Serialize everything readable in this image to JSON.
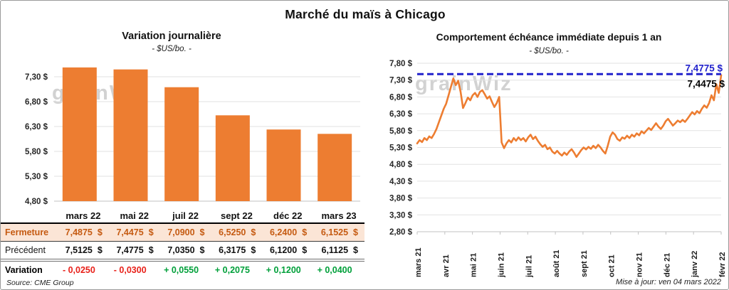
{
  "page": {
    "title": "Marché du maïs à Chicago",
    "source_note": "Source: CME Group",
    "update_note": "Mise à jour: ven 04 mars 2022",
    "watermark": "grainWiz"
  },
  "colors": {
    "orange": "#ED7D31",
    "peach_row_bg": "#FBE5D6",
    "rust_text": "#C55A11",
    "reference_blue": "#2222CC",
    "negative_red": "#e8211a",
    "positive_green": "#00a03a",
    "grid": "#E2E2E2",
    "axis": "#C2C2C2"
  },
  "table": {
    "columns": [
      "mars 22",
      "mai 22",
      "juil 22",
      "sept 22",
      "déc 22",
      "mars 23"
    ],
    "rows": [
      {
        "label": "Fermeture",
        "unit": "$",
        "values": [
          "7,4875",
          "7,4475",
          "7,0900",
          "6,5250",
          "6,2400",
          "6,1525"
        ]
      },
      {
        "label": "Précédent",
        "unit": "$",
        "values": [
          "7,5125",
          "7,4775",
          "7,0350",
          "6,3175",
          "6,1200",
          "6,1125"
        ]
      },
      {
        "label": "Variation",
        "values": [
          "- 0,0250",
          "- 0,0300",
          "+ 0,0550",
          "+ 0,2075",
          "+ 0,1200",
          "+ 0,0400"
        ],
        "signs": [
          "neg",
          "neg",
          "pos",
          "pos",
          "pos",
          "pos"
        ]
      }
    ]
  },
  "chart_data": [
    {
      "type": "bar",
      "title": "Variation journalière",
      "subtitle": "- $US/bo. -",
      "categories": [
        "mars 22",
        "mai 22",
        "juil 22",
        "sept 22",
        "déc 22",
        "mars 23"
      ],
      "values": [
        7.4875,
        7.4475,
        7.09,
        6.525,
        6.24,
        6.1525
      ],
      "ylabel": "$US/bo.",
      "ylim": [
        4.8,
        7.8
      ],
      "yticks": [
        {
          "v": 4.8,
          "label": "4,80 $"
        },
        {
          "v": 5.3,
          "label": "5,30 $"
        },
        {
          "v": 5.8,
          "label": "5,80 $"
        },
        {
          "v": 6.3,
          "label": "6,30 $"
        },
        {
          "v": 6.8,
          "label": "6,80 $"
        },
        {
          "v": 7.3,
          "label": "7,30 $"
        }
      ],
      "grid": true,
      "legend": "none",
      "bar_color": "#ED7D31"
    },
    {
      "type": "line",
      "title": "Comportement échéance immédiate depuis 1 an",
      "subtitle": "- $US/bo. -",
      "x_labels": [
        "mars 21",
        "avr 21",
        "mai 21",
        "juin 21",
        "juil 21",
        "août 21",
        "sept 21",
        "oct 21",
        "nov 21",
        "déc 21",
        "janv 22",
        "févr 22"
      ],
      "ylim": [
        2.8,
        7.8
      ],
      "yticks": [
        {
          "v": 2.8,
          "label": "2,80 $"
        },
        {
          "v": 3.3,
          "label": "3,30 $"
        },
        {
          "v": 3.8,
          "label": "3,80 $"
        },
        {
          "v": 4.3,
          "label": "4,30 $"
        },
        {
          "v": 4.8,
          "label": "4,80 $"
        },
        {
          "v": 5.3,
          "label": "5,30 $"
        },
        {
          "v": 5.8,
          "label": "5,80 $"
        },
        {
          "v": 6.3,
          "label": "6,30 $"
        },
        {
          "v": 6.8,
          "label": "6,80 $"
        },
        {
          "v": 7.3,
          "label": "7,30 $"
        },
        {
          "v": 7.8,
          "label": "7,80 $"
        }
      ],
      "grid": true,
      "legend": "none",
      "line_color": "#ED7D31",
      "reference_line": {
        "value": 7.4775,
        "label": "7,4775 $",
        "color": "#2222CC",
        "style": "dashed"
      },
      "last_point_label": {
        "value": 7.4475,
        "label": "7,4475 $",
        "color": "#000000"
      },
      "values": [
        5.42,
        5.52,
        5.46,
        5.58,
        5.52,
        5.63,
        5.58,
        5.7,
        5.85,
        6.05,
        6.25,
        6.45,
        6.6,
        6.85,
        7.1,
        7.35,
        7.15,
        7.28,
        6.95,
        6.47,
        6.62,
        6.78,
        6.7,
        6.85,
        6.92,
        6.8,
        6.95,
        7.0,
        6.88,
        6.75,
        6.82,
        6.65,
        6.5,
        6.62,
        6.8,
        5.45,
        5.28,
        5.42,
        5.52,
        5.45,
        5.58,
        5.5,
        5.6,
        5.52,
        5.58,
        5.48,
        5.6,
        5.68,
        5.55,
        5.62,
        5.5,
        5.4,
        5.32,
        5.38,
        5.25,
        5.3,
        5.18,
        5.12,
        5.2,
        5.12,
        5.06,
        5.15,
        5.08,
        5.18,
        5.25,
        5.15,
        5.02,
        5.12,
        5.22,
        5.3,
        5.24,
        5.32,
        5.26,
        5.35,
        5.28,
        5.38,
        5.3,
        5.2,
        5.12,
        5.35,
        5.62,
        5.75,
        5.68,
        5.55,
        5.5,
        5.6,
        5.56,
        5.65,
        5.58,
        5.68,
        5.62,
        5.72,
        5.66,
        5.78,
        5.72,
        5.8,
        5.88,
        5.82,
        5.92,
        6.02,
        5.92,
        5.85,
        5.95,
        6.08,
        6.15,
        6.05,
        5.95,
        6.02,
        6.1,
        6.05,
        6.12,
        6.06,
        6.15,
        6.25,
        6.35,
        6.28,
        6.38,
        6.32,
        6.45,
        6.55,
        6.48,
        6.62,
        6.85,
        6.7,
        7.18,
        6.92,
        7.4475
      ]
    }
  ]
}
